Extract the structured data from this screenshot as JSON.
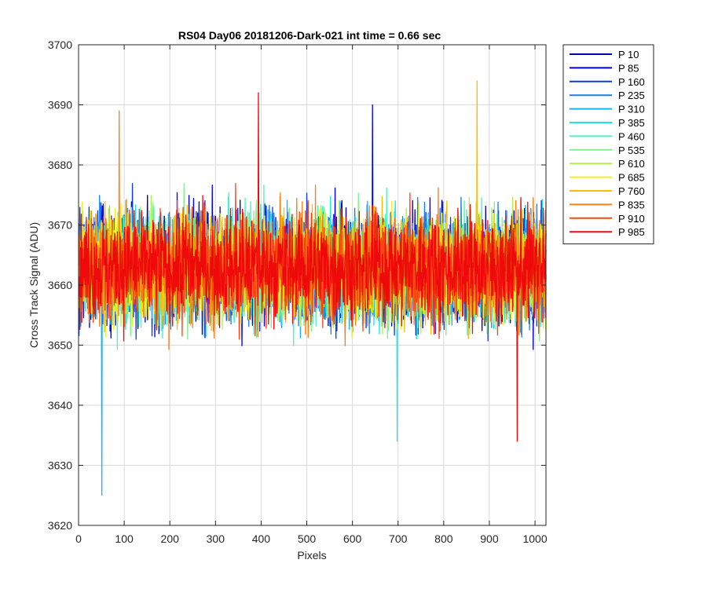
{
  "chart_data": {
    "type": "line",
    "title": "RS04 Day06 20181206-Dark-021 int time = 0.66 sec",
    "xlabel": "Pixels",
    "ylabel": "Cross Track Signal (ADU)",
    "xlim": [
      0,
      1024
    ],
    "ylim": [
      3620,
      3700
    ],
    "xticks": [
      0,
      100,
      200,
      300,
      400,
      500,
      600,
      700,
      800,
      900,
      1000
    ],
    "yticks": [
      3620,
      3630,
      3640,
      3650,
      3660,
      3670,
      3680,
      3690,
      3700
    ],
    "grid": true,
    "legend_position": "outside-top-right",
    "n_points": 1024,
    "series": [
      {
        "name": "P 10",
        "color": "#0000b0",
        "mean": 3663,
        "spread": 7
      },
      {
        "name": "P 85",
        "color": "#0000e6",
        "mean": 3663,
        "spread": 7
      },
      {
        "name": "P 160",
        "color": "#0a3dd9",
        "mean": 3663,
        "spread": 7
      },
      {
        "name": "P 235",
        "color": "#1680e8",
        "mean": 3663,
        "spread": 7
      },
      {
        "name": "P 310",
        "color": "#14b4f0",
        "mean": 3663,
        "spread": 7
      },
      {
        "name": "P 385",
        "color": "#1ee6e6",
        "mean": 3663,
        "spread": 7
      },
      {
        "name": "P 460",
        "color": "#50f0c0",
        "mean": 3663,
        "spread": 7
      },
      {
        "name": "P 535",
        "color": "#82f08c",
        "mean": 3663,
        "spread": 7
      },
      {
        "name": "P 610",
        "color": "#b4f050",
        "mean": 3663,
        "spread": 7
      },
      {
        "name": "P 685",
        "color": "#f0f01e",
        "mean": 3663,
        "spread": 7
      },
      {
        "name": "P 760",
        "color": "#f5be0a",
        "mean": 3663,
        "spread": 7
      },
      {
        "name": "P 835",
        "color": "#f58214",
        "mean": 3663,
        "spread": 7
      },
      {
        "name": "P 910",
        "color": "#f54614",
        "mean": 3663,
        "spread": 7
      },
      {
        "name": "P 985",
        "color": "#ee0a0a",
        "mean": 3663,
        "spread": 7
      }
    ],
    "extremes": [
      {
        "series": "P 310",
        "x": 50,
        "y": 3625
      },
      {
        "series": "P 985",
        "x": 960,
        "y": 3634
      },
      {
        "series": "P 385",
        "x": 697,
        "y": 3634
      },
      {
        "series": "P 760",
        "x": 872,
        "y": 3694
      },
      {
        "series": "P 985",
        "x": 393,
        "y": 3692
      },
      {
        "series": "P 85",
        "x": 643,
        "y": 3690
      },
      {
        "series": "P 835",
        "x": 88,
        "y": 3689
      }
    ]
  }
}
